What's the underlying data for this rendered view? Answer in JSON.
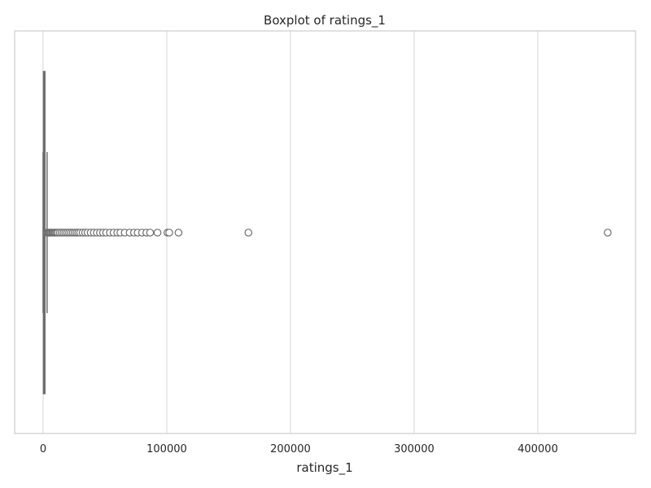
{
  "chart_data": {
    "type": "boxplot",
    "orientation": "horizontal",
    "title": "Boxplot of ratings_1",
    "xlabel": "ratings_1",
    "ylabel": "",
    "xlim": [
      -23000,
      479000
    ],
    "xticks": [
      0,
      100000,
      200000,
      300000,
      400000
    ],
    "xtick_labels": [
      "0",
      "100000",
      "200000",
      "300000",
      "400000"
    ],
    "grid": "vertical",
    "colors": {
      "box_edge": "#6e6e6e",
      "grid": "#dddddd",
      "frame": "#cccccc",
      "flier_fill": "#ffffff"
    },
    "box": {
      "whisker_low": 0,
      "q1": 300,
      "median": 500,
      "q3": 1500,
      "whisker_high": 3200
    },
    "fliers": [
      3500,
      4200,
      5000,
      5800,
      6600,
      7500,
      8300,
      9200,
      10000,
      11000,
      12000,
      13500,
      15000,
      16500,
      18000,
      19500,
      21000,
      22500,
      24000,
      25500,
      27000,
      28500,
      30000,
      32000,
      34000,
      36000,
      38500,
      41000,
      43500,
      46000,
      48500,
      51000,
      54000,
      57000,
      60000,
      62500,
      66000,
      70000,
      73500,
      76500,
      80000,
      83500,
      86500,
      92500,
      100500,
      102000,
      109500,
      166000,
      456500
    ]
  }
}
